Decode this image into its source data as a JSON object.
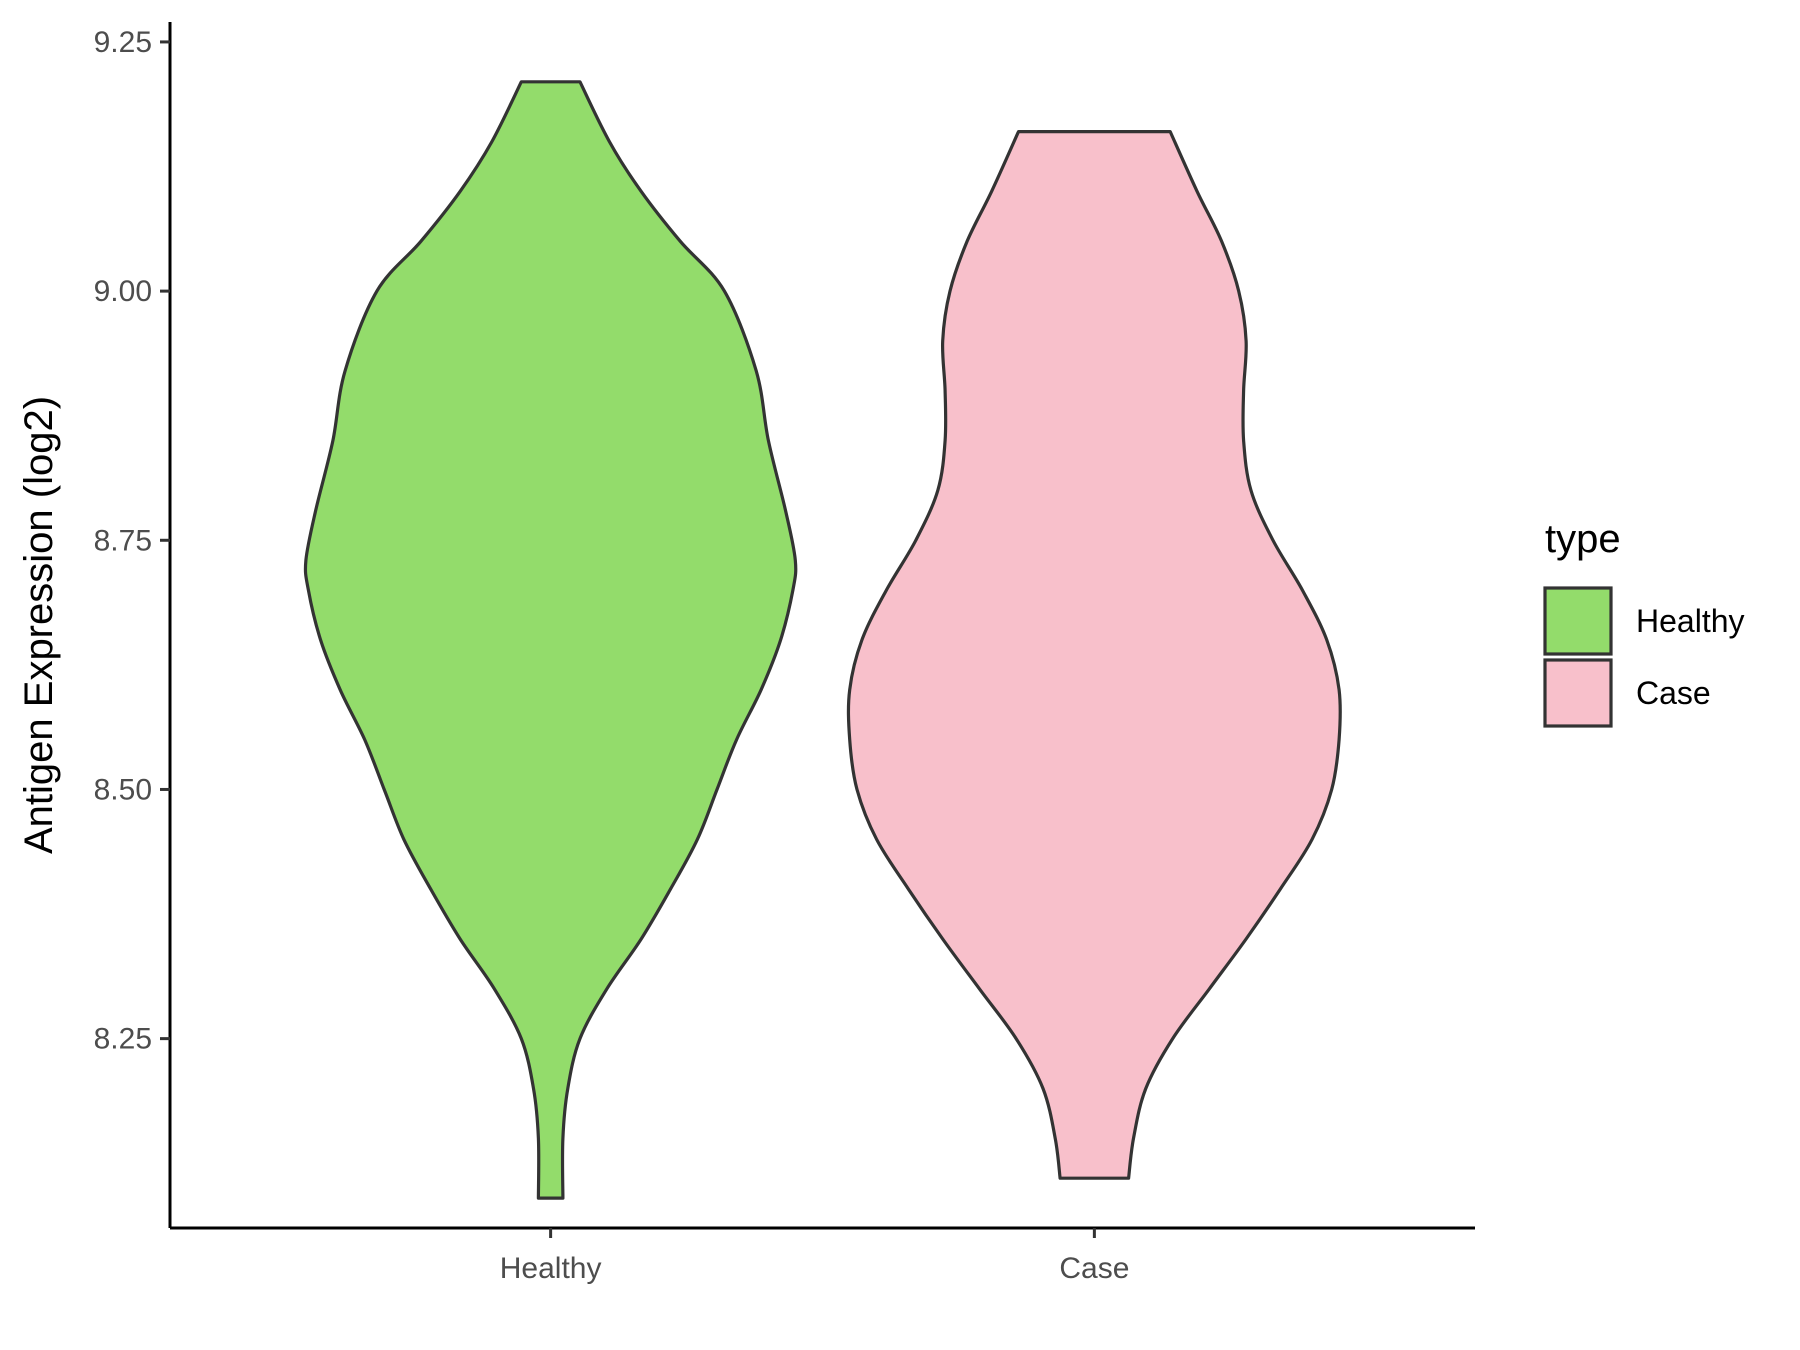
{
  "chart_data": {
    "type": "violin",
    "ylabel": "Antigen Expression (log2)",
    "xlabel": "",
    "categories": [
      "Healthy",
      "Case"
    ],
    "y_ticks": [
      "8.25",
      "8.50",
      "8.75",
      "9.00",
      "9.25"
    ],
    "ylim": [
      8.06,
      9.27
    ],
    "legend": {
      "title": "type",
      "position": "right",
      "entries": [
        {
          "label": "Healthy",
          "color": "#93dc6b"
        },
        {
          "label": "Case",
          "color": "#f8c0cb"
        }
      ]
    },
    "grid": false,
    "series": [
      {
        "name": "Healthy",
        "color": "#93dc6b",
        "min": 8.09,
        "max": 9.21,
        "density": [
          [
            8.09,
            0.05
          ],
          [
            8.15,
            0.05
          ],
          [
            8.2,
            0.07
          ],
          [
            8.25,
            0.12
          ],
          [
            8.3,
            0.23
          ],
          [
            8.35,
            0.37
          ],
          [
            8.4,
            0.49
          ],
          [
            8.45,
            0.6
          ],
          [
            8.5,
            0.68
          ],
          [
            8.55,
            0.76
          ],
          [
            8.6,
            0.86
          ],
          [
            8.65,
            0.94
          ],
          [
            8.7,
            0.99
          ],
          [
            8.73,
            1.0
          ],
          [
            8.78,
            0.96
          ],
          [
            8.85,
            0.89
          ],
          [
            8.92,
            0.84
          ],
          [
            9.0,
            0.71
          ],
          [
            9.05,
            0.53
          ],
          [
            9.1,
            0.37
          ],
          [
            9.15,
            0.24
          ],
          [
            9.21,
            0.12
          ]
        ]
      },
      {
        "name": "Case",
        "color": "#f8c0cb",
        "min": 8.11,
        "max": 9.16,
        "density": [
          [
            8.11,
            0.14
          ],
          [
            8.15,
            0.16
          ],
          [
            8.2,
            0.21
          ],
          [
            8.25,
            0.32
          ],
          [
            8.3,
            0.47
          ],
          [
            8.35,
            0.62
          ],
          [
            8.4,
            0.76
          ],
          [
            8.45,
            0.89
          ],
          [
            8.5,
            0.97
          ],
          [
            8.55,
            1.0
          ],
          [
            8.6,
            1.0
          ],
          [
            8.65,
            0.95
          ],
          [
            8.7,
            0.85
          ],
          [
            8.75,
            0.73
          ],
          [
            8.8,
            0.64
          ],
          [
            8.85,
            0.61
          ],
          [
            8.9,
            0.61
          ],
          [
            8.95,
            0.62
          ],
          [
            9.0,
            0.59
          ],
          [
            9.05,
            0.52
          ],
          [
            9.1,
            0.42
          ],
          [
            9.16,
            0.31
          ]
        ]
      }
    ]
  }
}
